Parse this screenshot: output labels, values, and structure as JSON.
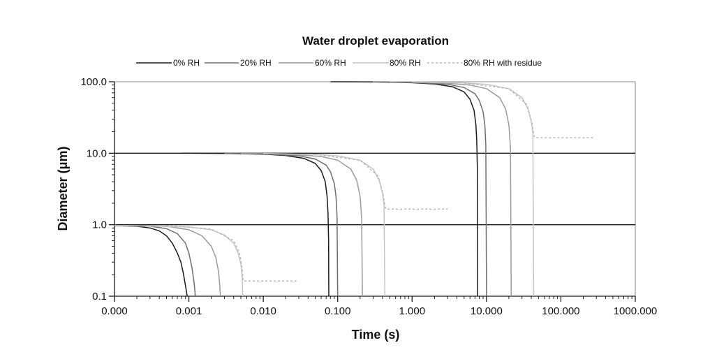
{
  "chart_data": {
    "type": "line",
    "title": "Water droplet evaporation",
    "xlabel": "Time (s)",
    "ylabel": "Diameter (μm)",
    "x_scale": "log",
    "y_scale": "log",
    "xlim": [
      0.0001,
      1000
    ],
    "ylim": [
      0.1,
      100
    ],
    "x_ticks": [
      {
        "v": 0.0001,
        "label": "0.000"
      },
      {
        "v": 0.001,
        "label": "0.001"
      },
      {
        "v": 0.01,
        "label": "0.010"
      },
      {
        "v": 0.1,
        "label": "0.100"
      },
      {
        "v": 1,
        "label": "1.000"
      },
      {
        "v": 10,
        "label": "10.000"
      },
      {
        "v": 100,
        "label": "100.000"
      },
      {
        "v": 1000,
        "label": "1000.000"
      }
    ],
    "y_ticks": [
      {
        "v": 0.1,
        "label": "0.1"
      },
      {
        "v": 1,
        "label": "1.0"
      },
      {
        "v": 10,
        "label": "10.0"
      },
      {
        "v": 100,
        "label": "100.0"
      }
    ],
    "horizontal_gridlines_at": [
      1,
      10
    ],
    "legend_position": "top",
    "series": [
      {
        "name": "0% RH",
        "color": "#1a1a1a",
        "dash": "none",
        "curves": [
          {
            "initial_diameter": 1.0,
            "x": [
              0.0001,
              0.0002,
              0.0003,
              0.0004,
              0.0005,
              0.0006,
              0.0007,
              0.00078,
              0.00085,
              0.0009,
              0.00095
            ],
            "y": [
              0.97,
              0.95,
              0.9,
              0.82,
              0.7,
              0.55,
              0.4,
              0.3,
              0.2,
              0.14,
              0.1
            ]
          },
          {
            "initial_diameter": 10.0,
            "x": [
              0.0008,
              0.003,
              0.01,
              0.02,
              0.035,
              0.05,
              0.06,
              0.068,
              0.072,
              0.074,
              0.0755,
              0.076
            ],
            "y": [
              10,
              9.95,
              9.7,
              9.3,
              8.5,
              7.2,
              5.7,
              4.0,
              2.5,
              1.5,
              0.6,
              0.1
            ]
          },
          {
            "initial_diameter": 100.0,
            "x": [
              0.08,
              0.3,
              1,
              2,
              3.5,
              5,
              6,
              6.8,
              7.2,
              7.4,
              7.55,
              7.6
            ],
            "y": [
              100,
              99.5,
              97,
              93,
              85,
              72,
              57,
              40,
              25,
              15,
              6,
              0.1
            ]
          }
        ]
      },
      {
        "name": "20% RH",
        "color": "#6e6e6e",
        "dash": "none",
        "curves": [
          {
            "initial_diameter": 1.0,
            "x": [
              0.0001,
              0.0003,
              0.0005,
              0.0007,
              0.0009,
              0.001,
              0.0011,
              0.00118,
              0.00122
            ],
            "y": [
              0.98,
              0.95,
              0.88,
              0.75,
              0.55,
              0.4,
              0.25,
              0.15,
              0.1
            ]
          },
          {
            "initial_diameter": 10.0,
            "x": [
              0.003,
              0.01,
              0.03,
              0.05,
              0.07,
              0.08,
              0.09,
              0.095,
              0.098,
              0.1
            ],
            "y": [
              9.95,
              9.8,
              9.2,
              8.3,
              6.8,
              5.5,
              3.8,
              2.5,
              1.3,
              0.1
            ]
          },
          {
            "initial_diameter": 100.0,
            "x": [
              0.3,
              1,
              3,
              5,
              7,
              8,
              9,
              9.5,
              9.8,
              10
            ],
            "y": [
              99.5,
              98,
              92,
              83,
              68,
              55,
              38,
              25,
              13,
              0.1
            ]
          }
        ]
      },
      {
        "name": "60% RH",
        "color": "#9a9a9a",
        "dash": "none",
        "curves": [
          {
            "initial_diameter": 1.0,
            "x": [
              0.0001,
              0.0005,
              0.001,
              0.0015,
              0.002,
              0.0023,
              0.0025,
              0.0026,
              0.00265
            ],
            "y": [
              0.98,
              0.95,
              0.85,
              0.7,
              0.5,
              0.35,
              0.22,
              0.14,
              0.1
            ]
          },
          {
            "initial_diameter": 10.0,
            "x": [
              0.005,
              0.02,
              0.06,
              0.1,
              0.15,
              0.18,
              0.2,
              0.21,
              0.215
            ],
            "y": [
              9.95,
              9.8,
              9.0,
              8.0,
              6.0,
              4.2,
              2.5,
              1.2,
              0.1
            ]
          },
          {
            "initial_diameter": 100.0,
            "x": [
              0.5,
              2,
              6,
              10,
              15,
              18,
              20,
              21,
              21.5
            ],
            "y": [
              99.5,
              98,
              90,
              80,
              60,
              42,
              25,
              12,
              0.1
            ]
          }
        ]
      },
      {
        "name": "80% RH",
        "color": "#c4c4c4",
        "dash": "none",
        "curves": [
          {
            "initial_diameter": 1.0,
            "x": [
              0.0001,
              0.001,
              0.002,
              0.003,
              0.004,
              0.0046,
              0.005,
              0.0052,
              0.0053
            ],
            "y": [
              0.98,
              0.93,
              0.85,
              0.72,
              0.55,
              0.4,
              0.28,
              0.19,
              0.1
            ]
          },
          {
            "initial_diameter": 10.0,
            "x": [
              0.01,
              0.05,
              0.1,
              0.2,
              0.3,
              0.36,
              0.4,
              0.42,
              0.43
            ],
            "y": [
              9.9,
              9.6,
              9.2,
              8.0,
              6.0,
              4.2,
              2.8,
              1.9,
              0.1
            ]
          },
          {
            "initial_diameter": 100.0,
            "x": [
              1,
              5,
              10,
              20,
              30,
              36,
              40,
              42,
              43
            ],
            "y": [
              99,
              96,
              92,
              80,
              60,
              42,
              28,
              19,
              0.1
            ]
          }
        ]
      },
      {
        "name": "80% RH with residue",
        "color": "#b8b8b8",
        "dash": "3,3",
        "curves": [
          {
            "initial_diameter": 1.0,
            "x": [
              0.0005,
              0.002,
              0.004,
              0.0048,
              0.0052,
              0.0053,
              0.0054,
              0.028
            ],
            "y": [
              0.97,
              0.87,
              0.6,
              0.4,
              0.25,
              0.19,
              0.163,
              0.163
            ]
          },
          {
            "initial_diameter": 10.0,
            "x": [
              0.05,
              0.2,
              0.35,
              0.41,
              0.43,
              0.44,
              0.45,
              3.0
            ],
            "y": [
              9.6,
              8.0,
              4.8,
              2.6,
              1.9,
              1.7,
              1.65,
              1.65
            ]
          },
          {
            "initial_diameter": 100.0,
            "x": [
              5,
              20,
              35,
              41,
              43,
              44,
              45,
              280
            ],
            "y": [
              96,
              80,
              48,
              26,
              19,
              17,
              16.5,
              16.5
            ]
          }
        ]
      }
    ]
  }
}
